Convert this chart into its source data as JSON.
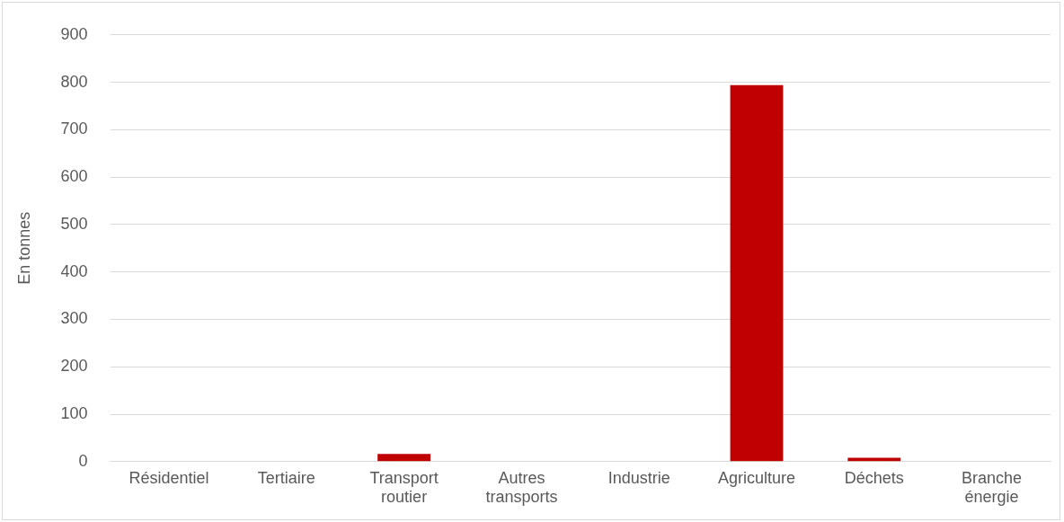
{
  "chart_data": {
    "type": "bar",
    "ylabel": "En tonnes",
    "categories": [
      "Résidentiel",
      "Tertiaire",
      "Transport routier",
      "Autres transports",
      "Industrie",
      "Agriculture",
      "Déchets",
      "Branche énergie"
    ],
    "values": [
      0,
      0,
      16,
      0,
      0,
      794,
      8,
      0
    ],
    "color": "#c00000",
    "ylim": [
      0,
      900
    ],
    "yticks": [
      0,
      100,
      200,
      300,
      400,
      500,
      600,
      700,
      800,
      900
    ],
    "grid": "y",
    "legend": false
  }
}
